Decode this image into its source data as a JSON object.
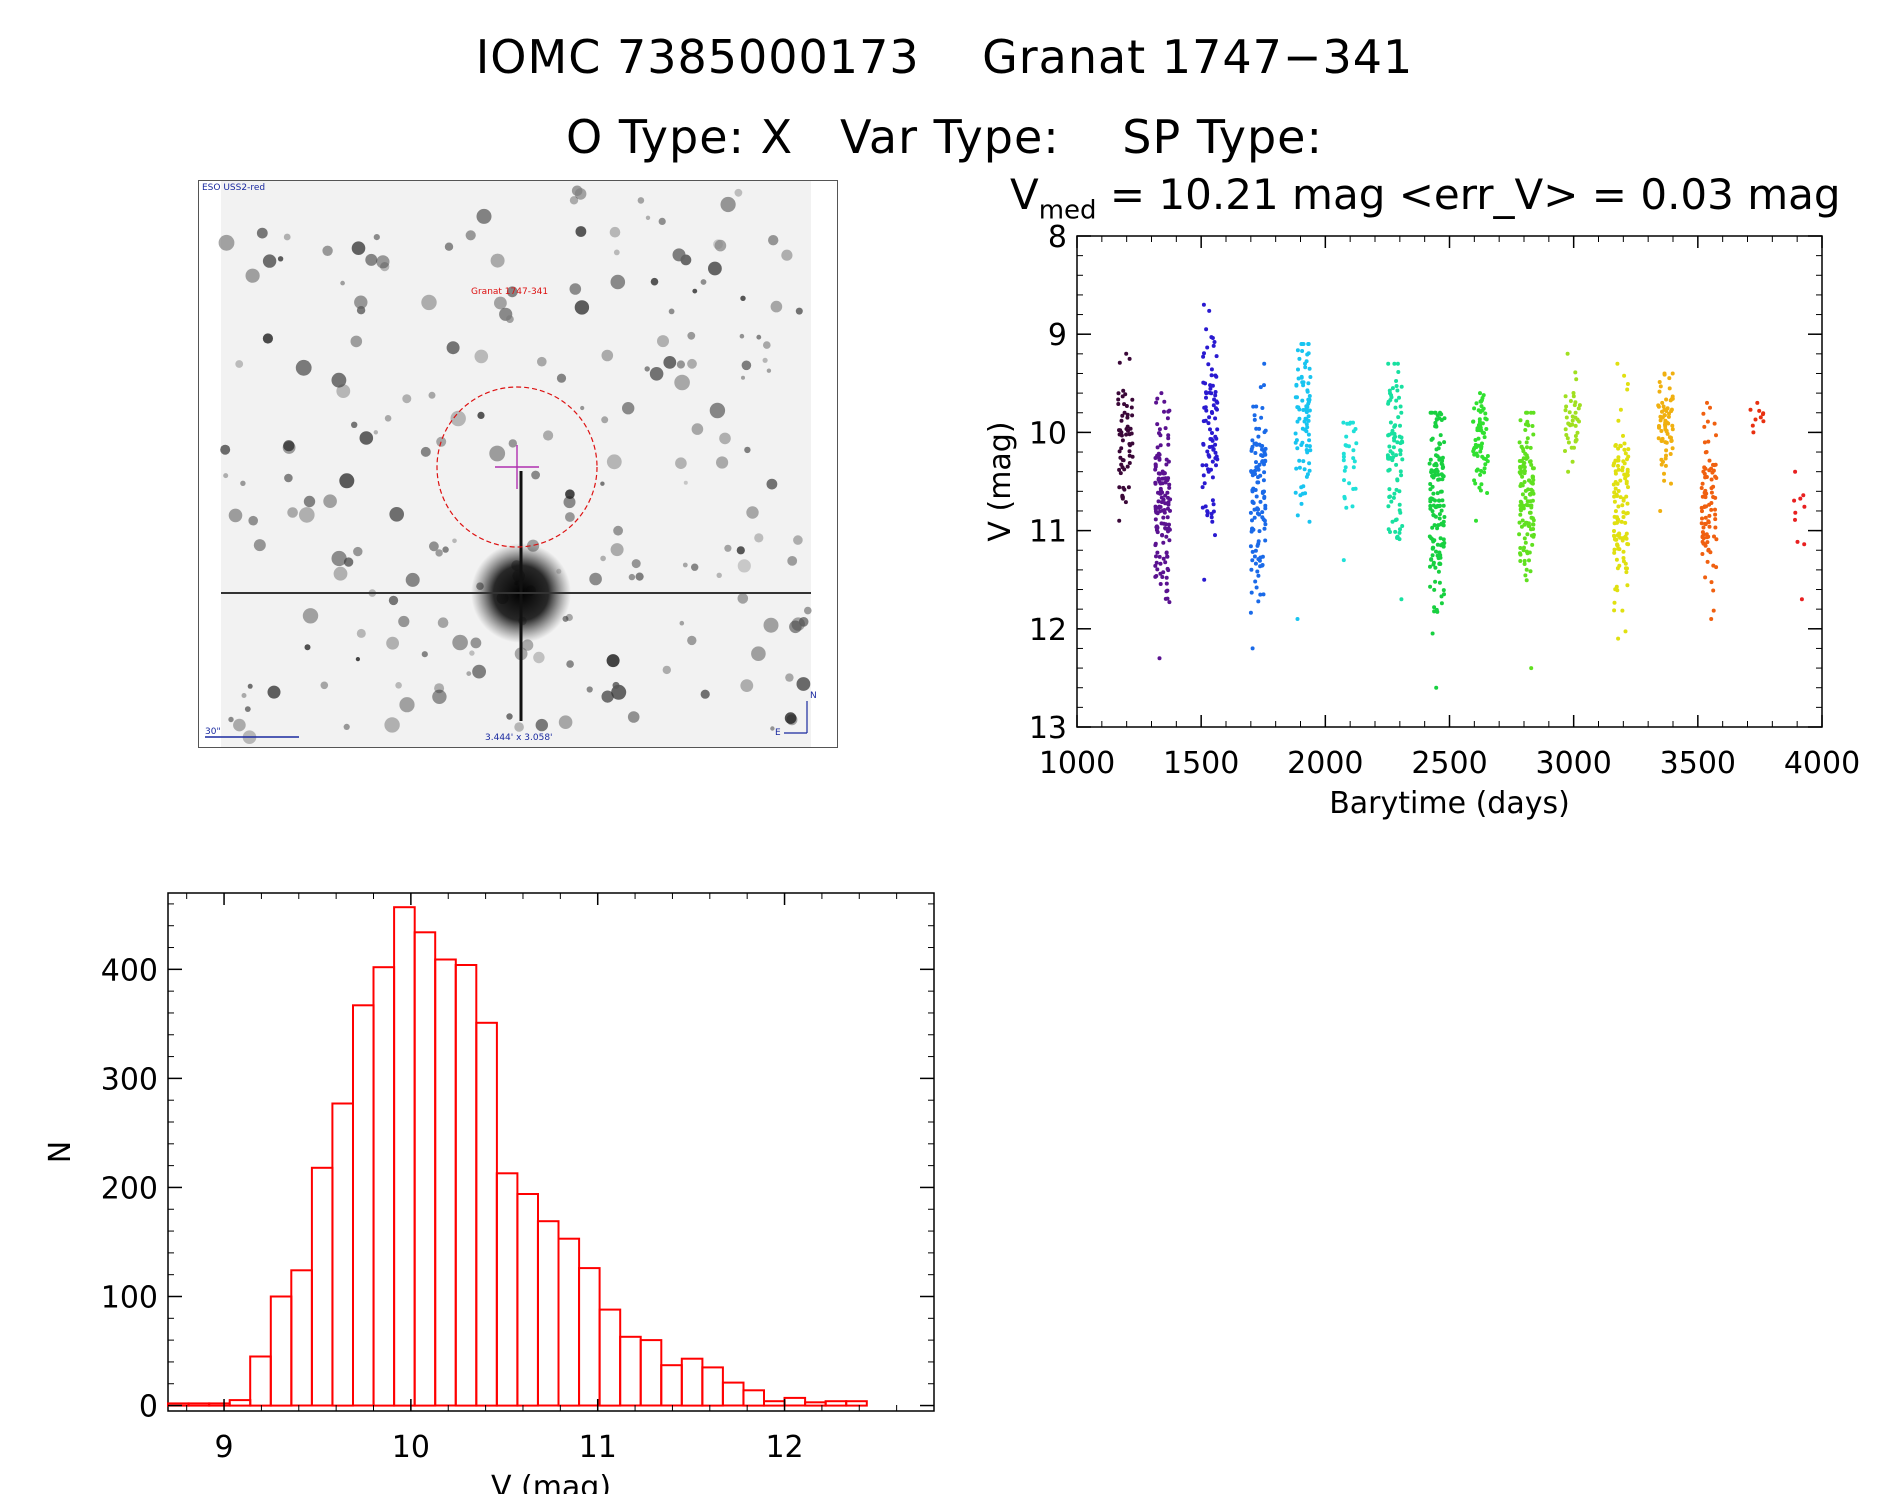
{
  "header": {
    "title": "IOMC 7385000173    Granat 1747−341",
    "subtitle": "O Type: X   Var Type:    SP Type:",
    "vmed_prefix": "V",
    "vmed_sub": "med",
    "vmed_rest": " = 10.21 mag <err_V> = 0.03 mag"
  },
  "sky_image": {
    "survey_label": "ESO USS2-red",
    "target_label": "Granat 1747-341",
    "scale_label": "30\"",
    "fov_label": "3.444' x 3.058'",
    "north_label": "N",
    "east_label": "E"
  },
  "colors": {
    "histogram": "#ff0000",
    "axis": "#000000",
    "circle": "#dd1111",
    "crosshair": "#b030b0"
  },
  "chart_data": [
    {
      "type": "scatter",
      "name": "light-curve",
      "xlabel": "Barytime (days)",
      "ylabel": "V (mag)",
      "xlim": [
        1000,
        4000
      ],
      "ylim": [
        13,
        8
      ],
      "xticks": [
        1000,
        1500,
        2000,
        2500,
        3000,
        3500,
        4000
      ],
      "yticks": [
        8,
        9,
        10,
        11,
        12,
        13
      ],
      "seasons": [
        {
          "x": 1195,
          "ymin": 9.2,
          "ymax": 10.9,
          "center": 10.1,
          "n": 60,
          "color": "#3a0838"
        },
        {
          "x": 1345,
          "ymin": 9.6,
          "ymax": 12.3,
          "center": 10.7,
          "n": 140,
          "color": "#5a1290"
        },
        {
          "x": 1535,
          "ymin": 8.7,
          "ymax": 11.5,
          "center": 10.0,
          "n": 90,
          "color": "#2a1ad0"
        },
        {
          "x": 1730,
          "ymin": 9.3,
          "ymax": 12.2,
          "center": 10.5,
          "n": 120,
          "color": "#1a6ae8"
        },
        {
          "x": 1910,
          "ymin": 9.1,
          "ymax": 11.9,
          "center": 9.9,
          "n": 90,
          "color": "#18c4f0"
        },
        {
          "x": 2095,
          "ymin": 9.9,
          "ymax": 11.3,
          "center": 10.3,
          "n": 30,
          "color": "#20e0d8"
        },
        {
          "x": 2280,
          "ymin": 9.3,
          "ymax": 11.7,
          "center": 10.2,
          "n": 90,
          "color": "#18e0a0"
        },
        {
          "x": 2450,
          "ymin": 9.8,
          "ymax": 12.6,
          "center": 10.8,
          "n": 150,
          "color": "#18d040"
        },
        {
          "x": 2625,
          "ymin": 9.6,
          "ymax": 10.9,
          "center": 10.1,
          "n": 70,
          "color": "#30e030"
        },
        {
          "x": 2810,
          "ymin": 9.8,
          "ymax": 12.4,
          "center": 10.6,
          "n": 130,
          "color": "#60e020"
        },
        {
          "x": 2995,
          "ymin": 9.2,
          "ymax": 10.4,
          "center": 9.9,
          "n": 40,
          "color": "#a0e020"
        },
        {
          "x": 3190,
          "ymin": 9.3,
          "ymax": 12.1,
          "center": 10.8,
          "n": 120,
          "color": "#e0e010"
        },
        {
          "x": 3370,
          "ymin": 9.4,
          "ymax": 10.8,
          "center": 9.9,
          "n": 70,
          "color": "#f0b010"
        },
        {
          "x": 3545,
          "ymin": 9.7,
          "ymax": 11.9,
          "center": 10.7,
          "n": 90,
          "color": "#f06010"
        },
        {
          "x": 3735,
          "ymin": 9.7,
          "ymax": 10.0,
          "center": 9.85,
          "n": 10,
          "color": "#e83010"
        },
        {
          "x": 3900,
          "ymin": 10.4,
          "ymax": 11.7,
          "center": 10.9,
          "n": 10,
          "color": "#e82020"
        }
      ]
    },
    {
      "type": "bar",
      "name": "histogram",
      "xlabel": "V (mag)",
      "ylabel": "N",
      "xlim": [
        8.7,
        12.8
      ],
      "ylim": [
        -5,
        470
      ],
      "xticks": [
        9,
        10,
        11,
        12
      ],
      "yticks": [
        0,
        100,
        200,
        300,
        400
      ],
      "bin_start": 8.7,
      "bin_width": 0.11,
      "values": [
        2,
        2,
        2,
        5,
        45,
        100,
        124,
        218,
        277,
        367,
        402,
        457,
        434,
        409,
        404,
        351,
        213,
        194,
        169,
        153,
        126,
        88,
        63,
        60,
        37,
        43,
        35,
        21,
        14,
        4,
        7,
        3,
        4,
        4,
        0
      ]
    }
  ]
}
